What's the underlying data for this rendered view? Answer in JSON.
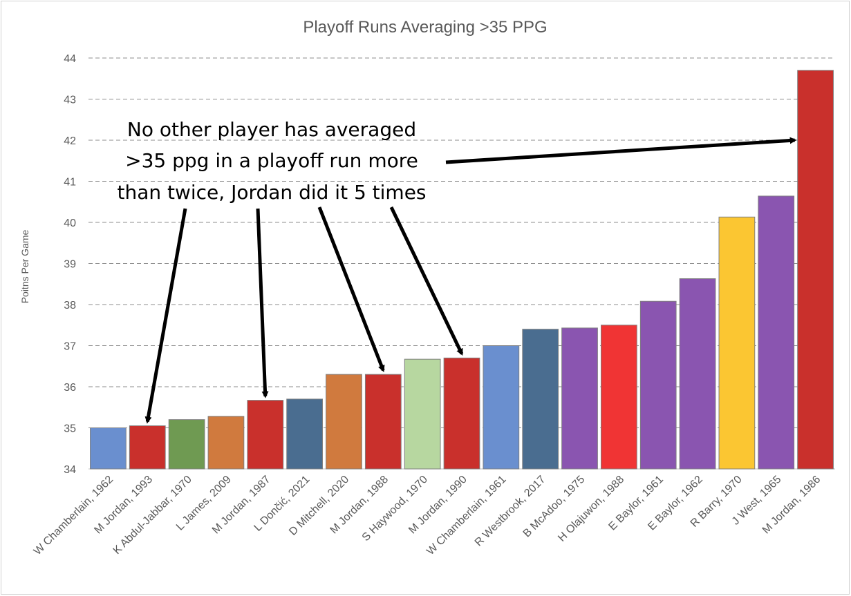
{
  "chart_data": {
    "type": "bar",
    "title": "Playoff Runs Averaging >35 PPG",
    "xlabel": "",
    "ylabel": "Poitns Per Game",
    "ylim": [
      34,
      44
    ],
    "yticks": [
      34,
      35,
      36,
      37,
      38,
      39,
      40,
      41,
      42,
      43,
      44
    ],
    "grid": true,
    "categories": [
      "W Chamberlain, 1962",
      "M Jordan, 1993",
      "K Abdul-Jabbar, 1970",
      "L James, 2009",
      "M Jordan, 1987",
      "L Dončić, 2021",
      "D Mitchell, 2020",
      "M Jordan, 1988",
      "S Haywood, 1970",
      "M Jordan, 1990",
      "W Chamberlain, 1961",
      "R Westbrook, 2017",
      "B McAdoo, 1975",
      "H Olajuwon, 1988",
      "E Baylor, 1961",
      "E Baylor, 1962",
      "R Barry, 1970",
      "J West, 1965",
      "M Jordan, 1986"
    ],
    "values": [
      35.0,
      35.05,
      35.2,
      35.28,
      35.67,
      35.7,
      36.3,
      36.3,
      36.67,
      36.7,
      37.0,
      37.4,
      37.43,
      37.5,
      38.08,
      38.63,
      40.13,
      40.64,
      43.7
    ],
    "colors": [
      "#6a8fcf",
      "#c9302c",
      "#6f9a52",
      "#d07a3e",
      "#c9302c",
      "#4a6d90",
      "#d07a3e",
      "#c9302c",
      "#b7d7a0",
      "#c9302c",
      "#6a8fcf",
      "#4a6d90",
      "#8a55b0",
      "#f03434",
      "#8a55b0",
      "#8a55b0",
      "#fbc632",
      "#8a55b0",
      "#c9302c"
    ],
    "annotation": {
      "lines": [
        "No other player has averaged",
        ">35 ppg in a playoff run more",
        "than twice, Jordan did it 5 times"
      ],
      "arrow_targets": [
        "M Jordan, 1993",
        "M Jordan, 1987",
        "M Jordan, 1988",
        "M Jordan, 1990",
        "M Jordan, 1986"
      ]
    }
  }
}
